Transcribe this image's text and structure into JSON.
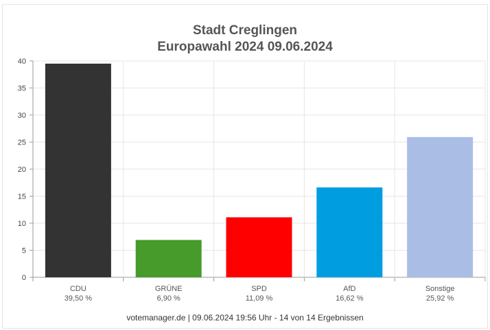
{
  "chart_data": {
    "type": "bar",
    "title": "Stadt Creglingen",
    "subtitle": "Europawahl 2024 09.06.2024",
    "categories": [
      "CDU",
      "GRÜNE",
      "SPD",
      "AfD",
      "Sonstige"
    ],
    "values": [
      39.5,
      6.9,
      11.09,
      16.62,
      25.92
    ],
    "value_labels": [
      "39,50 %",
      "6,90 %",
      "11,09 %",
      "16,62 %",
      "25,92 %"
    ],
    "colors": [
      "#333333",
      "#469b2a",
      "#ff0000",
      "#009ee0",
      "#aabde5"
    ],
    "ylim": [
      0,
      40
    ],
    "yticks": [
      0,
      5,
      10,
      15,
      20,
      25,
      30,
      35,
      40
    ],
    "grid": true,
    "xlabel": "",
    "ylabel": ""
  },
  "footer": "votemanager.de | 09.06.2024 19:56 Uhr - 14 von 14 Ergebnissen"
}
